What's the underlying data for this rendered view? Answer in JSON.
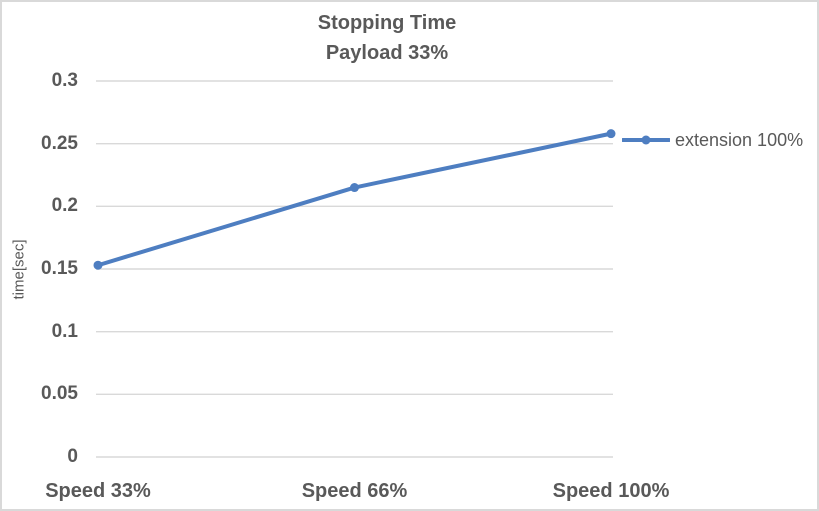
{
  "window": {
    "background_color": "#ffffff",
    "border_color": "#d9d9d9"
  },
  "chart_data": {
    "type": "line",
    "title": "Stopping Time",
    "subtitle": "Payload 33%",
    "ylabel": "time[sec]",
    "xlabel": "",
    "categories": [
      "Speed 33%",
      "Speed 66%",
      "Speed 100%"
    ],
    "series": [
      {
        "name": "extension 100%",
        "values": [
          0.153,
          0.215,
          0.258
        ],
        "color": "#4e7ec1",
        "marker": "circle",
        "line_width": 4
      }
    ],
    "ylim": [
      0,
      0.3
    ],
    "ytick_values": [
      0,
      0.05,
      0.1,
      0.15,
      0.2,
      0.25,
      0.3
    ],
    "ytick_labels": [
      "0",
      "0.05",
      "0.1",
      "0.15",
      "0.2",
      "0.25",
      "0.3"
    ],
    "grid": "horizontal",
    "gridline_color": "#d9d9d9",
    "text_color": "#595959",
    "legend_position": "right-of-last-point"
  }
}
